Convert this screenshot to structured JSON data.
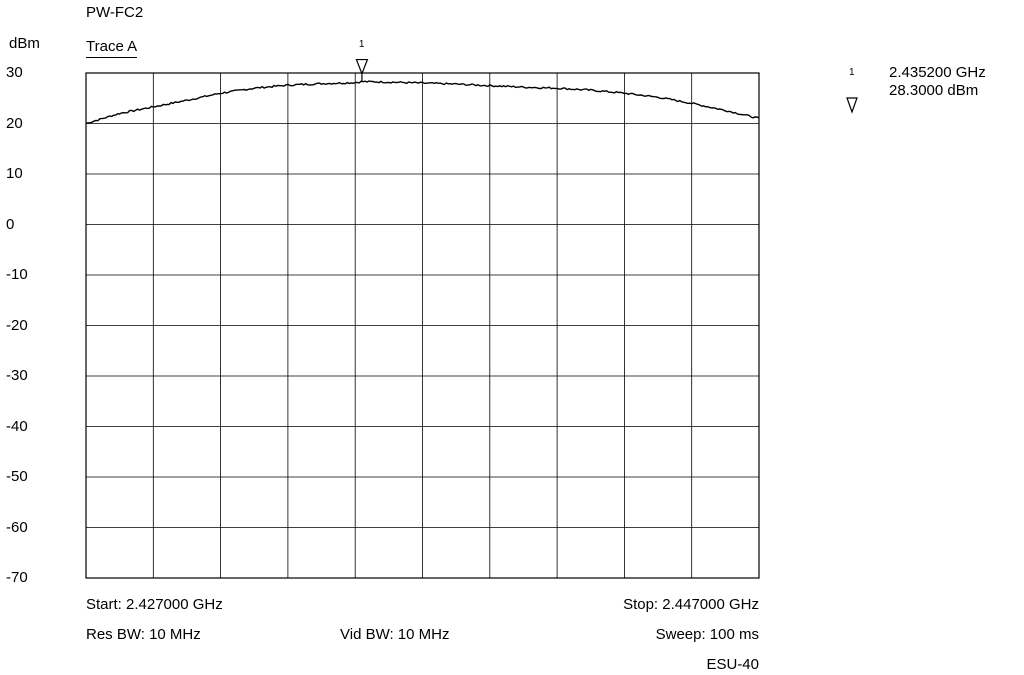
{
  "chart_data": {
    "type": "line",
    "title": "PW-FC2",
    "trace_label": "Trace A",
    "ylabel": "dBm",
    "ylim": [
      -70,
      30
    ],
    "yticks": [
      "30",
      "20",
      "10",
      "0",
      "-10",
      "-20",
      "-30",
      "-40",
      "-50",
      "-60",
      "-70"
    ],
    "x_divisions": 10,
    "grid": true,
    "xlim_ghz": [
      2.427,
      2.447
    ],
    "series": [
      {
        "x": [
          2.427,
          2.428,
          2.429,
          2.43,
          2.431,
          2.432,
          2.433,
          2.434,
          2.435,
          2.4352,
          2.436,
          2.437,
          2.438,
          2.439,
          2.44,
          2.441,
          2.442,
          2.443,
          2.444,
          2.445,
          2.446,
          2.447
        ],
        "values": [
          20.0,
          22.0,
          23.3,
          24.6,
          26.0,
          27.0,
          27.6,
          27.9,
          28.1,
          28.3,
          28.2,
          28.0,
          27.8,
          27.5,
          27.2,
          27.0,
          26.6,
          26.0,
          25.2,
          24.0,
          22.6,
          21.0
        ]
      }
    ],
    "marker": {
      "number": "1",
      "x_ghz": 2.4352,
      "frequency": "2.435200 GHz",
      "level": "28.3000 dBm"
    },
    "footer": {
      "start": "Start: 2.427000 GHz",
      "stop": "Stop: 2.447000 GHz",
      "res_bw": "Res BW: 10 MHz",
      "vid_bw": "Vid BW: 10 MHz",
      "sweep": "Sweep: 100 ms",
      "instrument": "ESU-40"
    }
  }
}
